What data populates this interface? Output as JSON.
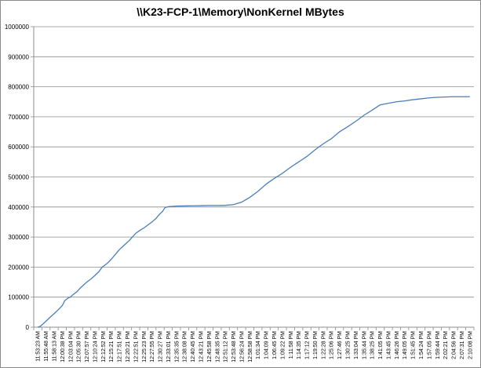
{
  "chart_data": {
    "type": "line",
    "title": "\\\\K23-FCP-1\\Memory\\NonKernel MBytes",
    "xlabel": "",
    "ylabel": "",
    "ylim": [
      0,
      1000000
    ],
    "yticks": [
      0,
      100000,
      200000,
      300000,
      400000,
      500000,
      600000,
      700000,
      800000,
      900000,
      1000000
    ],
    "ytick_labels": [
      "0",
      "100000",
      "200000",
      "300000",
      "400000",
      "500000",
      "600000",
      "700000",
      "800000",
      "900000",
      "1000000"
    ],
    "grid": true,
    "legend": "none",
    "line_color": "#4a7ebb",
    "x_labels": [
      "11:53:23 AM",
      "11:55:48 AM",
      "11:58:13 AM",
      "12:00:38 PM",
      "12:03:04 PM",
      "12:05:30 PM",
      "12:07:57 PM",
      "12:10:24 PM",
      "12:12:52 PM",
      "12:15:21 PM",
      "12:17:51 PM",
      "12:20:21 PM",
      "12:22:51 PM",
      "12:25:23 PM",
      "12:27:55 PM",
      "12:30:27 PM",
      "12:33:01 PM",
      "12:35:35 PM",
      "12:38:08 PM",
      "12:40:45 PM",
      "12:43:21 PM",
      "12:45:58 PM",
      "12:48:35 PM",
      "12:51:12 PM",
      "12:53:48 PM",
      "12:56:24 PM",
      "12:58:58 PM",
      "1:01:34 PM",
      "1:04:09 PM",
      "1:06:45 PM",
      "1:09:22 PM",
      "1:11:58 PM",
      "1:14:35 PM",
      "1:17:12 PM",
      "1:19:50 PM",
      "1:22:28 PM",
      "1:25:06 PM",
      "1:27:46 PM",
      "1:30:25 PM",
      "1:33:04 PM",
      "1:35:44 PM",
      "1:38:25 PM",
      "1:41:05 PM",
      "1:43:45 PM",
      "1:46:26 PM",
      "1:49:05 PM",
      "1:51:45 PM",
      "1:54:24 PM",
      "1:57:05 PM",
      "1:59:44 PM",
      "2:02:21 PM",
      "2:04:56 PM",
      "2:07:31 PM",
      "2:10:08 PM"
    ],
    "series": [
      {
        "values": [
          [
            0,
            0
          ],
          [
            0.3,
            3000
          ],
          [
            0.6,
            10000
          ],
          [
            1,
            20000
          ],
          [
            1.5,
            33000
          ],
          [
            2,
            45000
          ],
          [
            2.5,
            58000
          ],
          [
            3,
            72000
          ],
          [
            3.3,
            88000
          ],
          [
            3.7,
            97000
          ],
          [
            4,
            100000
          ],
          [
            4.3,
            108000
          ],
          [
            4.8,
            118000
          ],
          [
            5.2,
            130000
          ],
          [
            5.6,
            140000
          ],
          [
            6,
            150000
          ],
          [
            6.5,
            160000
          ],
          [
            7,
            172000
          ],
          [
            7.5,
            185000
          ],
          [
            7.9,
            200000
          ],
          [
            8.4,
            210000
          ],
          [
            8.8,
            220000
          ],
          [
            9.2,
            232000
          ],
          [
            9.6,
            245000
          ],
          [
            10,
            258000
          ],
          [
            10.4,
            268000
          ],
          [
            10.8,
            278000
          ],
          [
            11.2,
            288000
          ],
          [
            11.7,
            303000
          ],
          [
            12,
            312000
          ],
          [
            12.5,
            322000
          ],
          [
            13,
            330000
          ],
          [
            13.5,
            340000
          ],
          [
            14,
            350000
          ],
          [
            14.5,
            362000
          ],
          [
            15,
            378000
          ],
          [
            15.3,
            385000
          ],
          [
            15.6,
            398000
          ],
          [
            16,
            401000
          ],
          [
            17,
            403000
          ],
          [
            18,
            403500
          ],
          [
            19,
            404000
          ],
          [
            20,
            404500
          ],
          [
            21,
            405000
          ],
          [
            22,
            405000
          ],
          [
            23,
            405500
          ],
          [
            24,
            408000
          ],
          [
            25,
            416000
          ],
          [
            26,
            432000
          ],
          [
            27,
            452000
          ],
          [
            28,
            476000
          ],
          [
            29,
            495000
          ],
          [
            30,
            512000
          ],
          [
            31,
            532000
          ],
          [
            32,
            550000
          ],
          [
            33,
            568000
          ],
          [
            34,
            590000
          ],
          [
            35,
            610000
          ],
          [
            36,
            627000
          ],
          [
            37,
            650000
          ],
          [
            38,
            667000
          ],
          [
            39,
            685000
          ],
          [
            40,
            705000
          ],
          [
            41,
            722000
          ],
          [
            42,
            740000
          ],
          [
            43,
            745000
          ],
          [
            44,
            750000
          ],
          [
            45,
            753000
          ],
          [
            46,
            757000
          ],
          [
            47,
            760000
          ],
          [
            48,
            763000
          ],
          [
            49,
            765000
          ],
          [
            50,
            766000
          ],
          [
            51,
            767000
          ],
          [
            52,
            767000
          ],
          [
            53,
            767000
          ]
        ]
      }
    ]
  }
}
